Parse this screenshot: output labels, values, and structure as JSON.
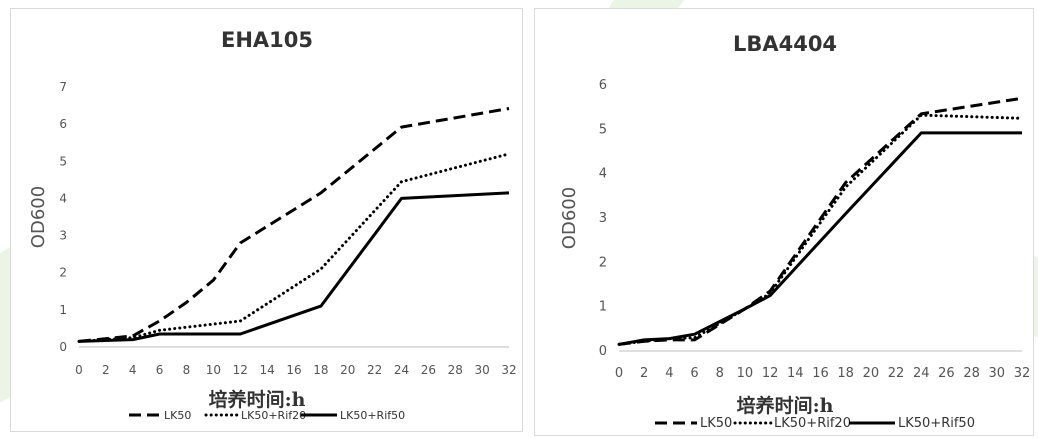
{
  "chart_data": [
    {
      "type": "line",
      "title": "EHA105",
      "xlabel": "培养时间:h",
      "ylabel": "OD600",
      "x": [
        0,
        2,
        4,
        6,
        8,
        10,
        12,
        14,
        16,
        18,
        20,
        22,
        24,
        26,
        28,
        30,
        32
      ],
      "xlim": [
        0,
        32
      ],
      "ylim": [
        0,
        7
      ],
      "yticks": [
        0,
        1,
        2,
        3,
        4,
        5,
        6,
        7
      ],
      "grid": false,
      "legend": "bottom",
      "series": [
        {
          "name": "LK50",
          "style": "dashed",
          "points": [
            [
              0,
              0.15
            ],
            [
              4,
              0.3
            ],
            [
              6,
              0.7
            ],
            [
              8,
              1.2
            ],
            [
              10,
              1.8
            ],
            [
              12,
              2.8
            ],
            [
              18,
              4.15
            ],
            [
              24,
              5.92
            ],
            [
              32,
              6.42
            ]
          ]
        },
        {
          "name": "LK50+Rif20",
          "style": "dotted",
          "points": [
            [
              0,
              0.15
            ],
            [
              4,
              0.25
            ],
            [
              6,
              0.45
            ],
            [
              12,
              0.7
            ],
            [
              18,
              2.1
            ],
            [
              24,
              4.45
            ],
            [
              32,
              5.2
            ]
          ]
        },
        {
          "name": "LK50+Rif50",
          "style": "solid",
          "points": [
            [
              0,
              0.15
            ],
            [
              4,
              0.2
            ],
            [
              6,
              0.35
            ],
            [
              12,
              0.35
            ],
            [
              18,
              1.1
            ],
            [
              24,
              4.0
            ],
            [
              32,
              4.15
            ]
          ]
        }
      ]
    },
    {
      "type": "line",
      "title": "LBA4404",
      "xlabel": "培养时间:h",
      "ylabel": "OD600",
      "x": [
        0,
        2,
        4,
        6,
        8,
        10,
        12,
        14,
        16,
        18,
        20,
        22,
        24,
        26,
        28,
        30,
        32
      ],
      "xlim": [
        0,
        32
      ],
      "ylim": [
        0,
        6
      ],
      "yticks": [
        0,
        1,
        2,
        3,
        4,
        5,
        6
      ],
      "grid": false,
      "legend": "bottom",
      "series": [
        {
          "name": "LK50",
          "style": "dashed",
          "points": [
            [
              0,
              0.15
            ],
            [
              2,
              0.22
            ],
            [
              4,
              0.25
            ],
            [
              6,
              0.25
            ],
            [
              10,
              0.95
            ],
            [
              12,
              1.35
            ],
            [
              18,
              3.8
            ],
            [
              24,
              5.35
            ],
            [
              32,
              5.7
            ]
          ]
        },
        {
          "name": "LK50+Rif20",
          "style": "dotted",
          "points": [
            [
              0,
              0.15
            ],
            [
              2,
              0.22
            ],
            [
              4,
              0.28
            ],
            [
              6,
              0.3
            ],
            [
              10,
              0.95
            ],
            [
              12,
              1.3
            ],
            [
              18,
              3.7
            ],
            [
              24,
              5.32
            ],
            [
              32,
              5.25
            ]
          ]
        },
        {
          "name": "LK50+Rif50",
          "style": "solid",
          "points": [
            [
              0,
              0.15
            ],
            [
              2,
              0.25
            ],
            [
              4,
              0.28
            ],
            [
              6,
              0.38
            ],
            [
              10,
              0.95
            ],
            [
              12,
              1.25
            ],
            [
              18,
              3.1
            ],
            [
              24,
              4.92
            ],
            [
              32,
              4.92
            ]
          ]
        }
      ]
    }
  ]
}
